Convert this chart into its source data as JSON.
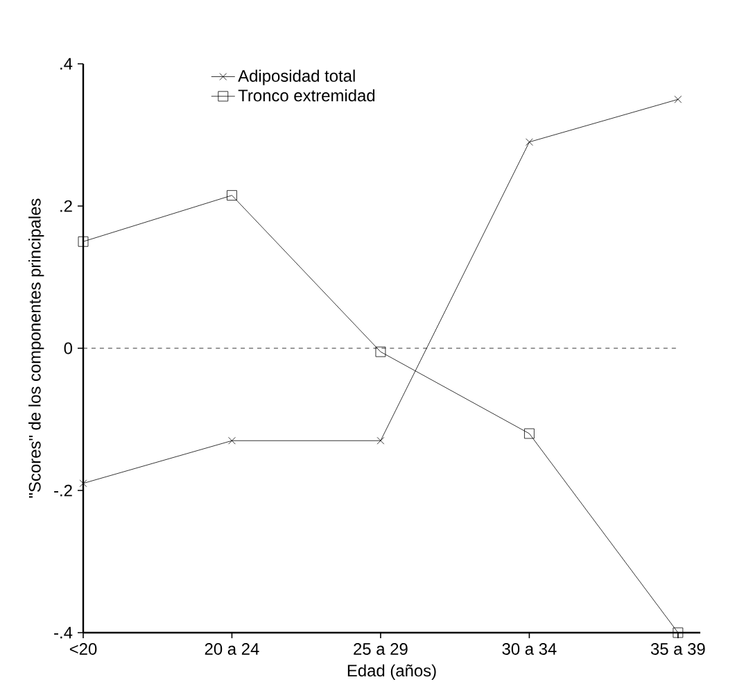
{
  "chart_data": {
    "type": "line",
    "xlabel": "Edad (años)",
    "ylabel": "\"Scores\" de los componentes principales",
    "categories": [
      "<20",
      "20 a 24",
      "25 a 29",
      "30 a 34",
      "35 a 39"
    ],
    "series": [
      {
        "name": "Adiposidad total",
        "color": "#000000",
        "marker": "cross",
        "values": [
          -0.19,
          -0.13,
          -0.13,
          0.29,
          0.35
        ]
      },
      {
        "name": "Tronco extremidad",
        "color": "#000000",
        "marker": "square",
        "values": [
          0.15,
          0.215,
          -0.005,
          -0.12,
          -0.4
        ]
      }
    ],
    "ylim": [
      -0.4,
      0.4
    ],
    "yticks": [
      {
        "value": -0.4,
        "label": "-.4"
      },
      {
        "value": -0.2,
        "label": "-.2"
      },
      0,
      {
        "value": 0.2,
        "label": ".2"
      },
      {
        "value": 0.4,
        "label": ".4"
      }
    ],
    "ref_lines": [
      {
        "axis": "y",
        "value": 0,
        "line_style": "dashed",
        "color": "#000000"
      }
    ],
    "legend": "top left",
    "grid": false,
    "line_style": "solid"
  }
}
